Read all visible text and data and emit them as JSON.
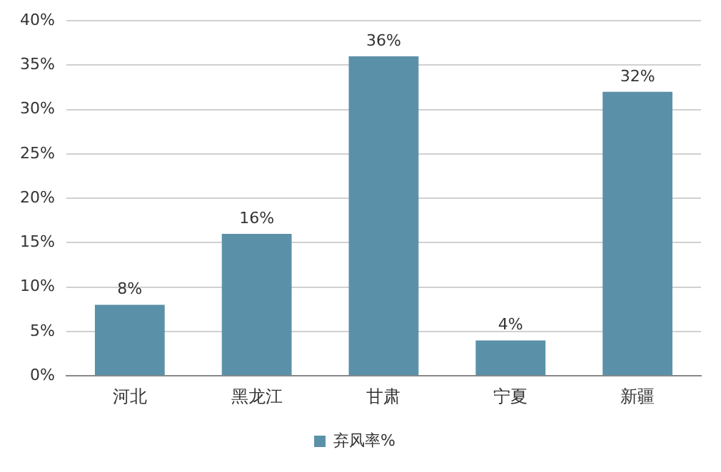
{
  "chart_data": {
    "type": "bar",
    "categories": [
      "河北",
      "黑龙江",
      "甘肃",
      "宁夏",
      "新疆"
    ],
    "series": [
      {
        "name": "弃风率%",
        "color": "#5b91a8",
        "values": [
          8,
          16,
          36,
          4,
          32
        ],
        "value_labels": [
          "8%",
          "16%",
          "36%",
          "4%",
          "32%"
        ]
      }
    ],
    "ylim": [
      0,
      40
    ],
    "yticks": [
      {
        "value": 0,
        "label": "0%"
      },
      {
        "value": 5,
        "label": "5%"
      },
      {
        "value": 10,
        "label": "10%"
      },
      {
        "value": 15,
        "label": "15%"
      },
      {
        "value": 20,
        "label": "20%"
      },
      {
        "value": 25,
        "label": "25%"
      },
      {
        "value": 30,
        "label": "30%"
      },
      {
        "value": 35,
        "label": "35%"
      },
      {
        "value": 40,
        "label": "40%"
      }
    ],
    "grid": "y",
    "legend": "bottom"
  }
}
